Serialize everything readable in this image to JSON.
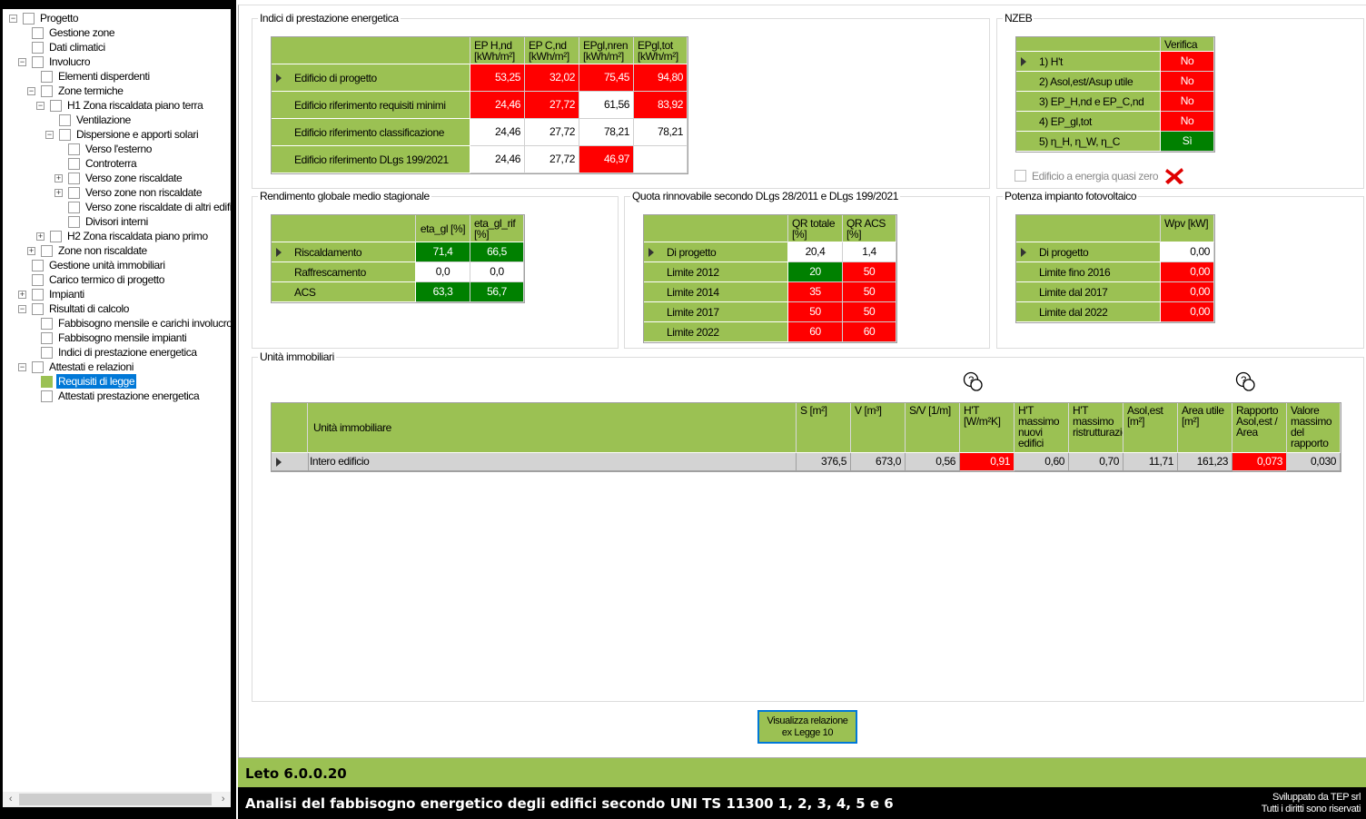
{
  "tree": {
    "items": [
      {
        "label": "Progetto",
        "level": 0,
        "expander": "minus"
      },
      {
        "label": "Gestione zone",
        "level": 1
      },
      {
        "label": "Dati climatici",
        "level": 1
      },
      {
        "label": "Involucro",
        "level": 1,
        "expander": "minus"
      },
      {
        "label": "Elementi disperdenti",
        "level": 2
      },
      {
        "label": "Zone termiche",
        "level": 2,
        "expander": "minus"
      },
      {
        "label": "H1 Zona riscaldata piano terra",
        "level": 3,
        "expander": "minus"
      },
      {
        "label": "Ventilazione",
        "level": 4
      },
      {
        "label": "Dispersione e apporti solari",
        "level": 4,
        "expander": "minus"
      },
      {
        "label": "Verso l'esterno",
        "level": 5
      },
      {
        "label": "Controterra",
        "level": 5
      },
      {
        "label": "Verso zone riscaldate",
        "level": 5,
        "expander": "plus"
      },
      {
        "label": "Verso zone non riscaldate",
        "level": 5,
        "expander": "plus"
      },
      {
        "label": "Verso zone riscaldate di altri edifici",
        "level": 5
      },
      {
        "label": "Divisori interni",
        "level": 5
      },
      {
        "label": "H2 Zona riscaldata piano primo",
        "level": 3,
        "expander": "plus"
      },
      {
        "label": "Zone non riscaldate",
        "level": 2,
        "expander": "plus"
      },
      {
        "label": "Gestione unità immobiliari",
        "level": 1
      },
      {
        "label": "Carico termico di progetto",
        "level": 1
      },
      {
        "label": "Impianti",
        "level": 1,
        "expander": "plus"
      },
      {
        "label": "Risultati di calcolo",
        "level": 1,
        "expander": "minus"
      },
      {
        "label": "Fabbisogno mensile e carichi involucro",
        "level": 2
      },
      {
        "label": "Fabbisogno mensile impianti",
        "level": 2
      },
      {
        "label": "Indici di prestazione energetica",
        "level": 2
      },
      {
        "label": "Attestati e relazioni",
        "level": 1,
        "expander": "minus"
      },
      {
        "label": "Requisiti di legge",
        "level": 2,
        "selected": true,
        "checked": true
      },
      {
        "label": "Attestati prestazione energetica",
        "level": 2
      }
    ]
  },
  "colors": {
    "accent_green": "#9bc153",
    "fail_red": "#ff0000",
    "pass_green": "#008000",
    "selection_blue": "#0078d7"
  },
  "indici": {
    "title": "Indici di prestazione energetica",
    "headers": [
      "",
      "EP H,nd [kWh/m²]",
      "EP C,nd [kWh/m²]",
      "EPgl,nren [kWh/m²]",
      "EPgl,tot [kWh/m²]"
    ],
    "rows": [
      {
        "label": "Edificio di progetto",
        "current": true,
        "cells": [
          {
            "v": "53,25",
            "s": "red"
          },
          {
            "v": "32,02",
            "s": "red"
          },
          {
            "v": "75,45",
            "s": "red"
          },
          {
            "v": "94,80",
            "s": "red"
          }
        ]
      },
      {
        "label": "Edificio riferimento requisiti minimi",
        "cells": [
          {
            "v": "24,46",
            "s": "red"
          },
          {
            "v": "27,72",
            "s": "red"
          },
          {
            "v": "61,56",
            "s": "white"
          },
          {
            "v": "83,92",
            "s": "red"
          }
        ]
      },
      {
        "label": "Edificio riferimento classificazione",
        "cells": [
          {
            "v": "24,46",
            "s": "white"
          },
          {
            "v": "27,72",
            "s": "white"
          },
          {
            "v": "78,21",
            "s": "white"
          },
          {
            "v": "78,21",
            "s": "white"
          }
        ]
      },
      {
        "label": "Edificio riferimento DLgs 199/2021",
        "cells": [
          {
            "v": "24,46",
            "s": "white"
          },
          {
            "v": "27,72",
            "s": "white"
          },
          {
            "v": "46,97",
            "s": "red"
          },
          {
            "v": "",
            "s": "white"
          }
        ]
      }
    ]
  },
  "nzeb": {
    "title": "NZEB",
    "headers": [
      "",
      "Verifica"
    ],
    "rows": [
      {
        "label": "1) H't",
        "current": true,
        "cells": [
          {
            "v": "No",
            "s": "red"
          }
        ]
      },
      {
        "label": "2) Asol,est/Asup utile",
        "cells": [
          {
            "v": "No",
            "s": "red"
          }
        ]
      },
      {
        "label": "3) EP_H,nd e EP_C,nd",
        "cells": [
          {
            "v": "No",
            "s": "red"
          }
        ]
      },
      {
        "label": "4) EP_gl,tot",
        "cells": [
          {
            "v": "No",
            "s": "red"
          }
        ]
      },
      {
        "label": "5) η_H, η_W, η_C",
        "cells": [
          {
            "v": "Sì",
            "s": "green"
          }
        ]
      }
    ],
    "checkbox_label": "Edificio a energia quasi zero",
    "checkbox_checked": false,
    "status_icon": "red-x-icon"
  },
  "rendimento": {
    "title": "Rendimento globale medio stagionale",
    "headers": [
      "",
      "eta_gl [%]",
      "eta_gl_rif [%]"
    ],
    "rows": [
      {
        "label": "Riscaldamento",
        "current": true,
        "cells": [
          {
            "v": "71,4",
            "s": "green"
          },
          {
            "v": "66,5",
            "s": "green"
          }
        ]
      },
      {
        "label": "Raffrescamento",
        "cells": [
          {
            "v": "0,0",
            "s": "white"
          },
          {
            "v": "0,0",
            "s": "white"
          }
        ]
      },
      {
        "label": "ACS",
        "cells": [
          {
            "v": "63,3",
            "s": "green"
          },
          {
            "v": "56,7",
            "s": "green"
          }
        ]
      }
    ]
  },
  "quota": {
    "title": "Quota rinnovabile secondo DLgs 28/2011 e DLgs 199/2021",
    "headers": [
      "",
      "QR totale [%]",
      "QR ACS [%]"
    ],
    "rows": [
      {
        "label": "Di progetto",
        "current": true,
        "cells": [
          {
            "v": "20,4",
            "s": "white"
          },
          {
            "v": "1,4",
            "s": "white"
          }
        ]
      },
      {
        "label": "Limite 2012",
        "cells": [
          {
            "v": "20",
            "s": "green"
          },
          {
            "v": "50",
            "s": "red"
          }
        ]
      },
      {
        "label": "Limite 2014",
        "cells": [
          {
            "v": "35",
            "s": "red"
          },
          {
            "v": "50",
            "s": "red"
          }
        ]
      },
      {
        "label": "Limite 2017",
        "cells": [
          {
            "v": "50",
            "s": "red"
          },
          {
            "v": "50",
            "s": "red"
          }
        ]
      },
      {
        "label": "Limite 2022",
        "cells": [
          {
            "v": "60",
            "s": "red"
          },
          {
            "v": "60",
            "s": "red"
          }
        ]
      }
    ]
  },
  "potenza": {
    "title": "Potenza impianto fotovoltaico",
    "headers": [
      "",
      "Wpv [kW]"
    ],
    "rows": [
      {
        "label": "Di progetto",
        "current": true,
        "cells": [
          {
            "v": "0,00",
            "s": "white"
          }
        ]
      },
      {
        "label": "Limite fino 2016",
        "cells": [
          {
            "v": "0,00",
            "s": "red"
          }
        ]
      },
      {
        "label": "Limite dal 2017",
        "cells": [
          {
            "v": "0,00",
            "s": "red"
          }
        ]
      },
      {
        "label": "Limite dal 2022",
        "cells": [
          {
            "v": "0,00",
            "s": "red"
          }
        ]
      }
    ]
  },
  "unita": {
    "title": "Unità immobiliari",
    "help_icons": [
      "help-chat-icon",
      "help-chat-icon"
    ],
    "headers": [
      "",
      "Unità immobiliare",
      "S [m²]",
      "V [m³]",
      "S/V [1/m]",
      "H'T [W/m²K]",
      "H'T massimo nuovi edifici",
      "H'T massimo ristrutturazioni",
      "Asol,est [m²]",
      "Area utile [m²]",
      "Rapporto Asol,est / Area",
      "Valore massimo del rapporto"
    ],
    "rows": [
      {
        "label": "Intero edificio",
        "current": true,
        "cells": [
          {
            "v": "376,5",
            "s": "grey"
          },
          {
            "v": "673,0",
            "s": "grey"
          },
          {
            "v": "0,56",
            "s": "grey"
          },
          {
            "v": "0,91",
            "s": "red"
          },
          {
            "v": "0,60",
            "s": "grey"
          },
          {
            "v": "0,70",
            "s": "grey"
          },
          {
            "v": "11,71",
            "s": "grey"
          },
          {
            "v": "161,23",
            "s": "grey"
          },
          {
            "v": "0,073",
            "s": "red"
          },
          {
            "v": "0,030",
            "s": "grey"
          }
        ]
      }
    ]
  },
  "button": {
    "label_line1": "Visualizza relazione",
    "label_line2": "ex Legge 10"
  },
  "footer": {
    "version": "Leto 6.0.0.20",
    "subtitle": "Analisi del fabbisogno energetico degli edifici secondo UNI TS 11300 1, 2, 3, 4, 5 e 6",
    "credit1": "Sviluppato da TEP srl",
    "credit2": "Tutti i diritti sono riservati"
  }
}
